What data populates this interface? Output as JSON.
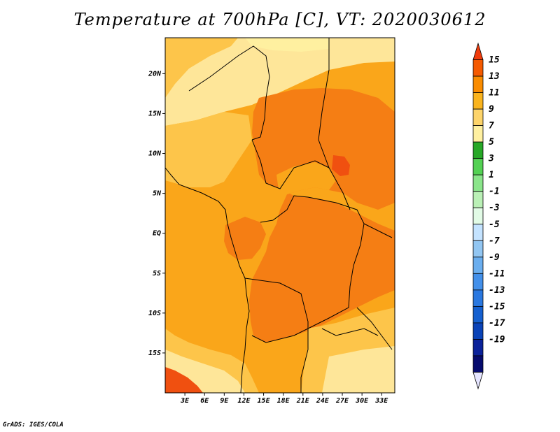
{
  "title": "Temperature at 700hPa [C], VT: 2020030612",
  "credit": "GrADS: IGES/COLA",
  "map": {
    "lat_range": [
      -20,
      24.5
    ],
    "lon_range": [
      0,
      35
    ],
    "lat_ticks": [
      {
        "value": 20,
        "label": "20N"
      },
      {
        "value": 15,
        "label": "15N"
      },
      {
        "value": 10,
        "label": "10N"
      },
      {
        "value": 5,
        "label": "5N"
      },
      {
        "value": 0,
        "label": "EQ"
      },
      {
        "value": -5,
        "label": "5S"
      },
      {
        "value": -10,
        "label": "10S"
      },
      {
        "value": -15,
        "label": "15S"
      }
    ],
    "lon_ticks": [
      {
        "value": 3,
        "label": "3E"
      },
      {
        "value": 6,
        "label": "6E"
      },
      {
        "value": 9,
        "label": "9E"
      },
      {
        "value": 12,
        "label": "12E"
      },
      {
        "value": 15,
        "label": "15E"
      },
      {
        "value": 18,
        "label": "18E"
      },
      {
        "value": 21,
        "label": "21E"
      },
      {
        "value": 24,
        "label": "24E"
      },
      {
        "value": 27,
        "label": "27E"
      },
      {
        "value": 30,
        "label": "30E"
      },
      {
        "value": 33,
        "label": "33E"
      }
    ]
  },
  "colorbar": {
    "levels": [
      "15",
      "13",
      "11",
      "9",
      "7",
      "5",
      "3",
      "1",
      "-1",
      "-3",
      "-5",
      "-7",
      "-9",
      "-11",
      "-13",
      "-15",
      "-17",
      "-19"
    ],
    "colors": [
      "#f03c0c",
      "#f55a00",
      "#fa8c00",
      "#fab41e",
      "#fdd46a",
      "#fff0a0",
      "#27a827",
      "#53d153",
      "#8ae58a",
      "#baf0b6",
      "#e2fbe6",
      "#c4e3ff",
      "#92c6f2",
      "#6aaeef",
      "#4390ea",
      "#2a78e0",
      "#1560d0",
      "#0a43b8",
      "#0b229a",
      "#060b6e",
      "#e5e5ff"
    ],
    "palette": {
      "3to5": "#fff0a0",
      "5to7": "#fee699",
      "7to9": "#fdc54a",
      "9to11": "#faa61a",
      "11to13": "#f57e14",
      "13to15": "#f05010"
    }
  }
}
